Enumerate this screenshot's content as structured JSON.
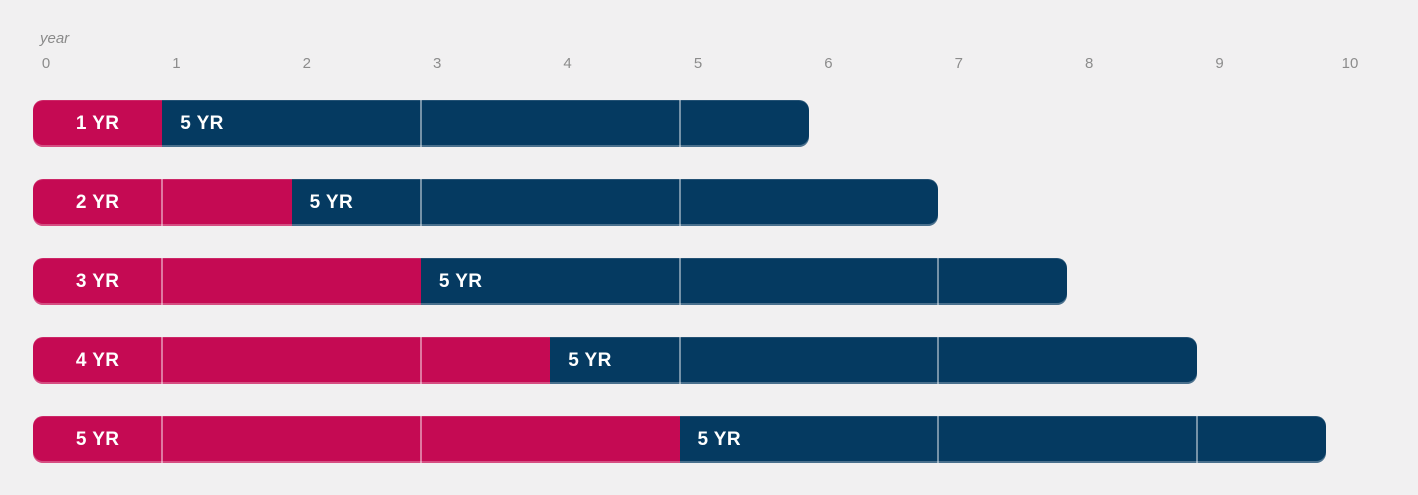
{
  "colors": {
    "pink": "#C50A53",
    "navy": "#053A61",
    "background": "#F1F0F1",
    "tick_text": "#8C8C8C",
    "bar_text": "#FFFFFF",
    "divider": "rgba(255,255,255,0.45)"
  },
  "chart_data": {
    "type": "bar",
    "variant": "horizontal-stacked-timeline",
    "title": "",
    "xlabel": "year",
    "xlim": [
      0,
      10
    ],
    "x_ticks": [
      "0",
      "1",
      "2",
      "3",
      "4",
      "5",
      "6",
      "7",
      "8",
      "9",
      "10"
    ],
    "grid": false,
    "legend": "none",
    "categories": [
      "1 YR",
      "2 YR",
      "3 YR",
      "4 YR",
      "5 YR"
    ],
    "series": [
      {
        "name": "segment-1-pink",
        "color": "#C50A53",
        "values": [
          1,
          2,
          3,
          4,
          5
        ]
      },
      {
        "name": "segment-2-navy",
        "color": "#053A61",
        "values": [
          5,
          5,
          5,
          5,
          5
        ]
      }
    ],
    "rows": [
      {
        "pink_label": "1 YR",
        "pink_years": 1,
        "navy_label": "5 YR",
        "navy_years": 5,
        "total_years": 6
      },
      {
        "pink_label": "2 YR",
        "pink_years": 2,
        "navy_label": "5 YR",
        "navy_years": 5,
        "total_years": 7
      },
      {
        "pink_label": "3 YR",
        "pink_years": 3,
        "navy_label": "5 YR",
        "navy_years": 5,
        "total_years": 8
      },
      {
        "pink_label": "4 YR",
        "pink_years": 4,
        "navy_label": "5 YR",
        "navy_years": 5,
        "total_years": 9
      },
      {
        "pink_label": "5 YR",
        "pink_years": 5,
        "navy_label": "5 YR",
        "navy_years": 5,
        "total_years": 10
      }
    ],
    "divider_years": [
      1,
      3,
      5,
      7,
      9
    ]
  }
}
